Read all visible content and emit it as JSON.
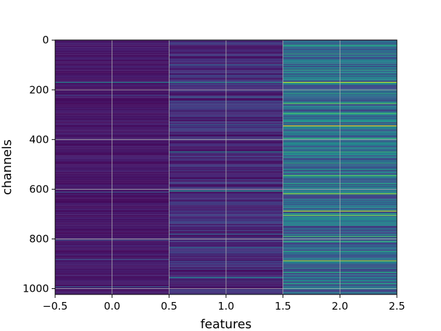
{
  "chart_data": {
    "type": "heatmap",
    "title": "",
    "xlabel": "features",
    "ylabel": "channels",
    "xlim": [
      -0.5,
      2.5
    ],
    "ylim": [
      1023.5,
      -0.5
    ],
    "y_inverted": true,
    "n_rows": 1024,
    "n_columns": 3,
    "colormap": "viridis",
    "grid": true,
    "x_ticks": [
      -0.5,
      0.0,
      0.5,
      1.0,
      1.5,
      2.0,
      2.5
    ],
    "x_tick_labels": [
      "−0.5",
      "0.0",
      "0.5",
      "1.0",
      "1.5",
      "2.0",
      "2.5"
    ],
    "y_ticks": [
      0,
      200,
      400,
      600,
      800,
      1000
    ],
    "y_tick_labels": [
      "0",
      "200",
      "400",
      "600",
      "800",
      "1000"
    ],
    "columns": [
      {
        "feature": 0,
        "baseline_level": 0.05,
        "bright_rows": [
          {
            "row": 170,
            "level": 0.45
          },
          {
            "row": 222,
            "level": 0.2
          },
          {
            "row": 612,
            "level": 0.25
          },
          {
            "row": 805,
            "level": 0.25
          },
          {
            "row": 882,
            "level": 0.25
          },
          {
            "row": 992,
            "level": 0.3
          }
        ]
      },
      {
        "feature": 1,
        "baseline_level": 0.1,
        "bright_rows": [
          {
            "row": 100,
            "level": 0.3
          },
          {
            "row": 170,
            "level": 0.5
          },
          {
            "row": 230,
            "level": 0.3
          },
          {
            "row": 340,
            "level": 0.3
          },
          {
            "row": 450,
            "level": 0.45
          },
          {
            "row": 607,
            "level": 0.55
          },
          {
            "row": 780,
            "level": 0.3
          },
          {
            "row": 835,
            "level": 0.35
          },
          {
            "row": 955,
            "level": 0.45
          }
        ]
      },
      {
        "feature": 2,
        "baseline_level": 0.3,
        "bright_rows": [
          {
            "row": 20,
            "level": 0.6
          },
          {
            "row": 55,
            "level": 0.6
          },
          {
            "row": 120,
            "level": 0.6
          },
          {
            "row": 170,
            "level": 0.9
          },
          {
            "row": 215,
            "level": 0.6
          },
          {
            "row": 255,
            "level": 0.75
          },
          {
            "row": 295,
            "level": 0.7
          },
          {
            "row": 345,
            "level": 0.95
          },
          {
            "row": 395,
            "level": 0.65
          },
          {
            "row": 450,
            "level": 0.65
          },
          {
            "row": 495,
            "level": 0.6
          },
          {
            "row": 545,
            "level": 0.75
          },
          {
            "row": 578,
            "level": 0.6
          },
          {
            "row": 618,
            "level": 0.85
          },
          {
            "row": 688,
            "level": 0.9
          },
          {
            "row": 705,
            "level": 0.8
          },
          {
            "row": 790,
            "level": 0.7
          },
          {
            "row": 810,
            "level": 0.65
          },
          {
            "row": 850,
            "level": 0.6
          },
          {
            "row": 888,
            "level": 0.85
          },
          {
            "row": 935,
            "level": 0.6
          },
          {
            "row": 980,
            "level": 0.6
          }
        ]
      }
    ]
  }
}
